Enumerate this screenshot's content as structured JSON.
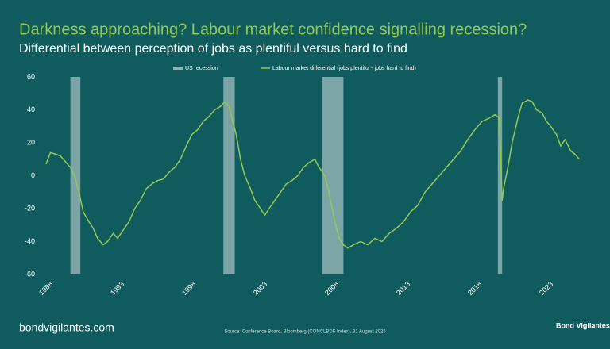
{
  "chart_data": {
    "type": "line",
    "title": "Darkness approaching? Labour market confidence signalling recession?",
    "subtitle": "Differential between perception of jobs as plentiful versus hard to find",
    "x": [
      1988.0,
      1988.3,
      1988.7,
      1989.0,
      1989.3,
      1989.7,
      1990.0,
      1990.3,
      1990.6,
      1991.0,
      1991.3,
      1991.6,
      1992.0,
      1992.3,
      1992.7,
      1993.0,
      1993.4,
      1993.8,
      1994.2,
      1994.6,
      1995.0,
      1995.4,
      1995.8,
      1996.2,
      1996.6,
      1997.0,
      1997.4,
      1997.8,
      1998.2,
      1998.6,
      1999.0,
      1999.4,
      1999.8,
      2000.2,
      2000.5,
      2000.8,
      2001.0,
      2001.3,
      2001.6,
      2001.9,
      2002.3,
      2002.6,
      2003.0,
      2003.3,
      2003.6,
      2004.0,
      2004.4,
      2004.8,
      2005.2,
      2005.6,
      2006.0,
      2006.4,
      2006.8,
      2007.1,
      2007.5,
      2007.9,
      2008.2,
      2008.5,
      2008.8,
      2009.1,
      2009.5,
      2010.0,
      2010.5,
      2011.0,
      2011.5,
      2012.0,
      2012.5,
      2013.0,
      2013.5,
      2014.0,
      2014.5,
      2015.0,
      2015.5,
      2016.0,
      2016.5,
      2017.0,
      2017.5,
      2018.0,
      2018.5,
      2019.0,
      2019.4,
      2019.7,
      2019.9,
      2020.0,
      2020.3,
      2020.6,
      2021.0,
      2021.3,
      2021.7,
      2022.0,
      2022.3,
      2022.7,
      2023.0,
      2023.3,
      2023.7,
      2024.0,
      2024.3,
      2024.7,
      2025.0,
      2025.3
    ],
    "series": [
      {
        "name": "Labour market differential (jobs plentiful - jobs hard to find)",
        "color": "#93c952",
        "values": [
          7,
          14,
          13,
          12,
          9,
          5,
          0,
          -10,
          -22,
          -28,
          -32,
          -38,
          -42,
          -40,
          -35,
          -38,
          -33,
          -28,
          -20,
          -15,
          -8,
          -5,
          -3,
          -2,
          2,
          5,
          10,
          18,
          25,
          28,
          33,
          36,
          40,
          42,
          45,
          42,
          35,
          25,
          10,
          0,
          -8,
          -15,
          -20,
          -24,
          -20,
          -15,
          -10,
          -5,
          -3,
          0,
          5,
          8,
          10,
          5,
          0,
          -15,
          -28,
          -38,
          -42,
          -44,
          -42,
          -40,
          -42,
          -38,
          -40,
          -35,
          -32,
          -28,
          -22,
          -18,
          -10,
          -5,
          0,
          5,
          10,
          15,
          22,
          28,
          33,
          35,
          37,
          35,
          -15,
          -8,
          5,
          20,
          35,
          44,
          46,
          45,
          40,
          38,
          33,
          30,
          25,
          18,
          22,
          15,
          13,
          10
        ]
      }
    ],
    "recessions": {
      "name": "US recession",
      "color": "#8fb3b4",
      "ranges": [
        [
          1989.7,
          1990.4
        ],
        [
          2000.4,
          2001.2
        ],
        [
          2007.3,
          2008.8
        ],
        [
          2019.6,
          2019.9
        ]
      ]
    },
    "xlim": [
      1988,
      2026
    ],
    "xticks": [
      1988,
      1993,
      1998,
      2003,
      2008,
      2013,
      2018,
      2023
    ],
    "ylim": [
      -60,
      60
    ],
    "yticks": [
      -60,
      -40,
      -20,
      0,
      20,
      40,
      60
    ]
  },
  "footer": {
    "site": "bondvigilantes.com",
    "source": "Source: Conference Board, Bloomberg (CONCLBDF Index), 31 August 2025",
    "logo": "Bond Vigilantes"
  }
}
